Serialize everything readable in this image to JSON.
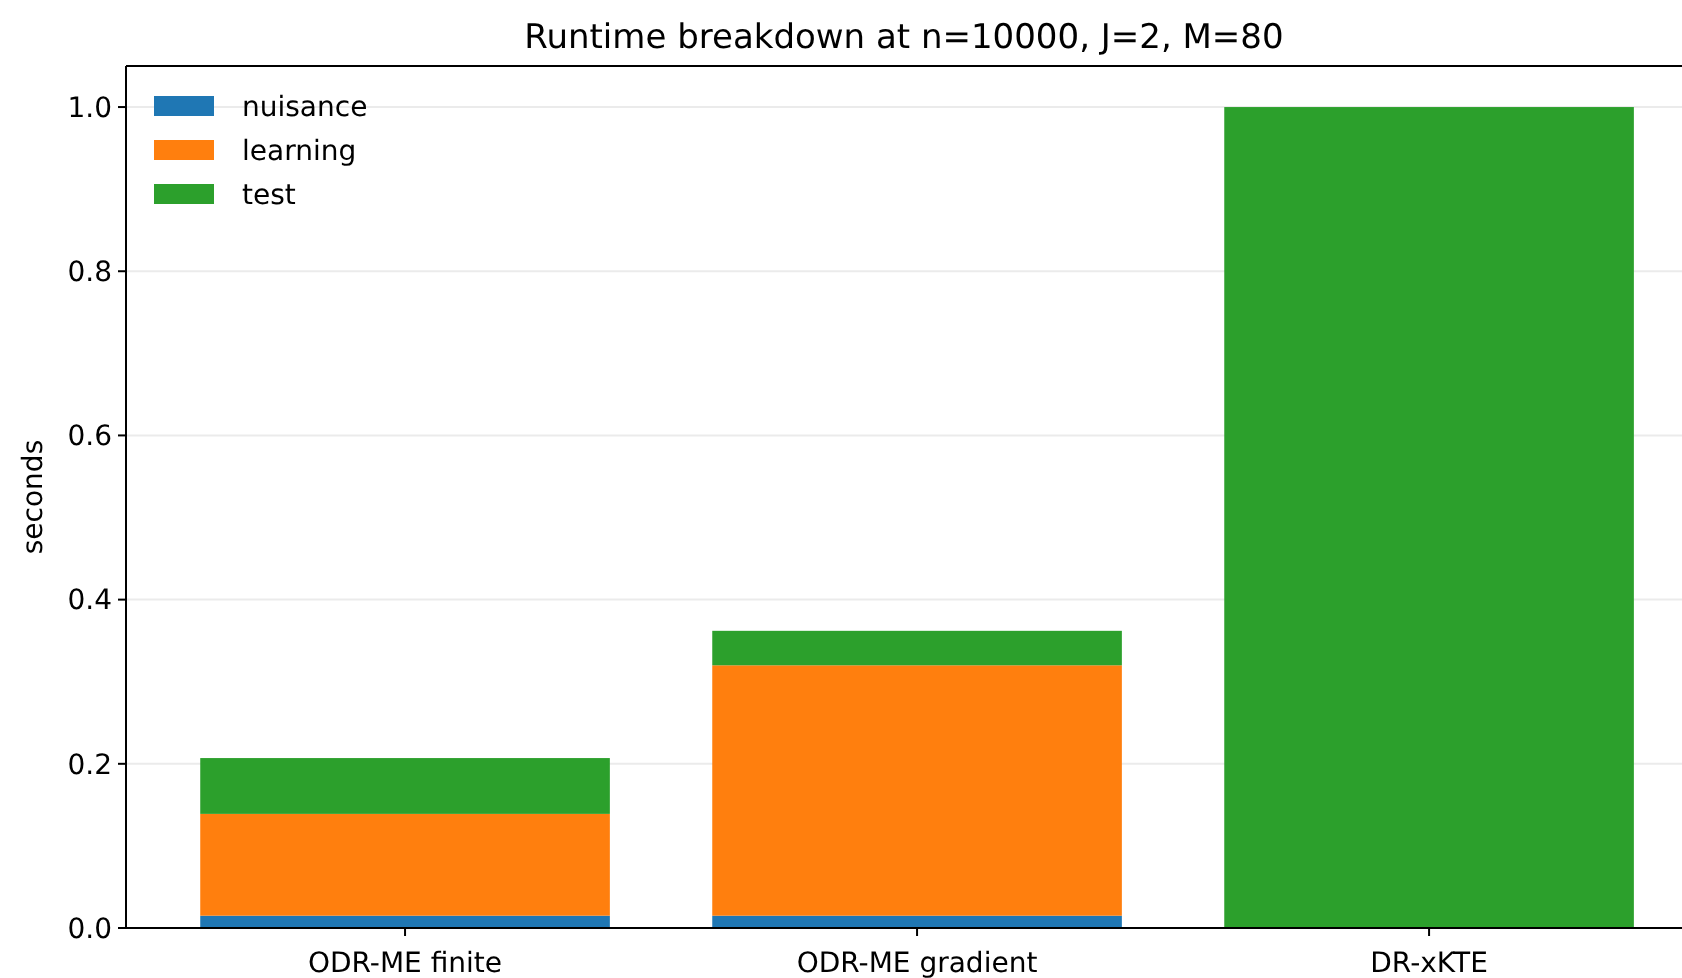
{
  "chart_data": {
    "type": "bar",
    "title": "Runtime breakdown at n=10000, J=2, M=80",
    "ylabel": "seconds",
    "categories": [
      "ODR-ME finite",
      "ODR-ME gradient",
      "DR-xKTE"
    ],
    "stacked": true,
    "series": [
      {
        "name": "nuisance",
        "color": "#1f77b4",
        "values": [
          0.015,
          0.015,
          0
        ]
      },
      {
        "name": "learning",
        "color": "#ff7f0e",
        "values": [
          0.124,
          0.305,
          0
        ]
      },
      {
        "name": "test",
        "color": "#2ca02c",
        "values": [
          0.068,
          0.042,
          1.0
        ]
      }
    ],
    "ylim": [
      0,
      1.05
    ],
    "yticks": [
      {
        "value": 0,
        "label": "0.0"
      },
      {
        "value": 0.2,
        "label": "0.2"
      },
      {
        "value": 0.4,
        "label": "0.4"
      },
      {
        "value": 0.6,
        "label": "0.6"
      },
      {
        "value": 0.8,
        "label": "0.8"
      },
      {
        "value": 1,
        "label": "1.0"
      }
    ],
    "grid": "y",
    "legend": "top left"
  }
}
